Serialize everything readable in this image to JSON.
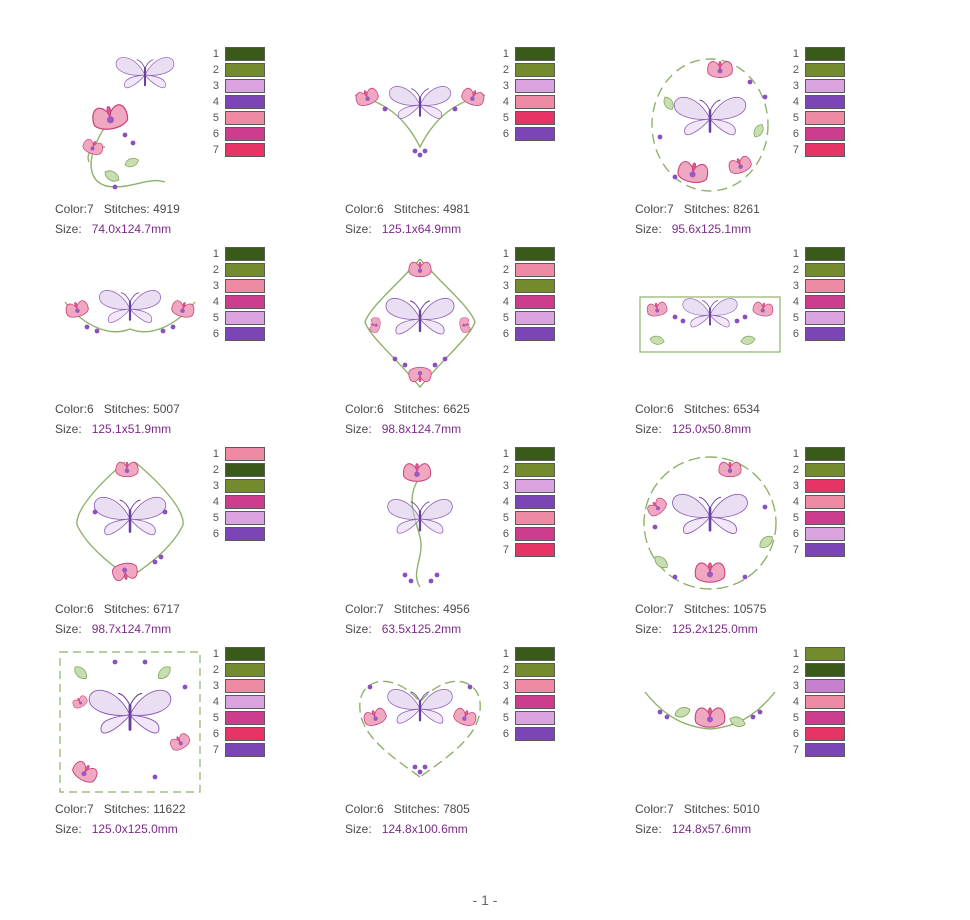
{
  "page": {
    "footer": "- 1 -"
  },
  "palette_colors": {
    "dark_green": "#3a5a1a",
    "olive_green": "#738a2f",
    "light_orchid": "#dba3df",
    "purple": "#7b45b5",
    "pink": "#ee8aa4",
    "magenta": "#cc3d8e",
    "crimson": "#e53465"
  },
  "designs": [
    {
      "color_label": "Color:",
      "color_count": "7",
      "stitches_label": "Stitches:",
      "stitches": "4919",
      "size_label": "Size:",
      "size": "74.0x124.7mm",
      "art": "butterfly-flower-corner",
      "palette": [
        {
          "n": "1",
          "c": "#3a5a1a"
        },
        {
          "n": "2",
          "c": "#738a2f"
        },
        {
          "n": "3",
          "c": "#dba3df"
        },
        {
          "n": "4",
          "c": "#7b45b5"
        },
        {
          "n": "5",
          "c": "#ee8aa4"
        },
        {
          "n": "6",
          "c": "#cc3d8e"
        },
        {
          "n": "7",
          "c": "#e53465"
        }
      ]
    },
    {
      "color_label": "Color:",
      "color_count": "6",
      "stitches_label": "Stitches:",
      "stitches": "4981",
      "size_label": "Size:",
      "size": "125.1x64.9mm",
      "art": "butterfly-triangle",
      "palette": [
        {
          "n": "1",
          "c": "#3a5a1a"
        },
        {
          "n": "2",
          "c": "#738a2f"
        },
        {
          "n": "3",
          "c": "#dba3df"
        },
        {
          "n": "4",
          "c": "#ee8aa4"
        },
        {
          "n": "5",
          "c": "#e53465"
        },
        {
          "n": "6",
          "c": "#7b45b5"
        }
      ]
    },
    {
      "color_label": "Color:",
      "color_count": "7",
      "stitches_label": "Stitches:",
      "stitches": "8261",
      "size_label": "Size:",
      "size": "95.6x125.1mm",
      "art": "butterfly-oval-wreath",
      "palette": [
        {
          "n": "1",
          "c": "#3a5a1a"
        },
        {
          "n": "2",
          "c": "#738a2f"
        },
        {
          "n": "3",
          "c": "#dba3df"
        },
        {
          "n": "4",
          "c": "#7b45b5"
        },
        {
          "n": "5",
          "c": "#ee8aa4"
        },
        {
          "n": "6",
          "c": "#cc3d8e"
        },
        {
          "n": "7",
          "c": "#e53465"
        }
      ]
    },
    {
      "color_label": "Color:",
      "color_count": "6",
      "stitches_label": "Stitches:",
      "stitches": "5007",
      "size_label": "Size:",
      "size": "125.1x51.9mm",
      "art": "butterfly-swag",
      "palette": [
        {
          "n": "1",
          "c": "#3a5a1a"
        },
        {
          "n": "2",
          "c": "#738a2f"
        },
        {
          "n": "3",
          "c": "#ee8aa4"
        },
        {
          "n": "4",
          "c": "#cc3d8e"
        },
        {
          "n": "5",
          "c": "#dba3df"
        },
        {
          "n": "6",
          "c": "#7b45b5"
        }
      ]
    },
    {
      "color_label": "Color:",
      "color_count": "6",
      "stitches_label": "Stitches:",
      "stitches": "6625",
      "size_label": "Size:",
      "size": "98.8x124.7mm",
      "art": "butterfly-diamond",
      "palette": [
        {
          "n": "1",
          "c": "#3a5a1a"
        },
        {
          "n": "2",
          "c": "#ee8aa4"
        },
        {
          "n": "3",
          "c": "#738a2f"
        },
        {
          "n": "4",
          "c": "#cc3d8e"
        },
        {
          "n": "5",
          "c": "#dba3df"
        },
        {
          "n": "6",
          "c": "#7b45b5"
        }
      ]
    },
    {
      "color_label": "Color:",
      "color_count": "6",
      "stitches_label": "Stitches:",
      "stitches": "6534",
      "size_label": "Size:",
      "size": "125.0x50.8mm",
      "art": "butterfly-border",
      "palette": [
        {
          "n": "1",
          "c": "#3a5a1a"
        },
        {
          "n": "2",
          "c": "#738a2f"
        },
        {
          "n": "3",
          "c": "#ee8aa4"
        },
        {
          "n": "4",
          "c": "#cc3d8e"
        },
        {
          "n": "5",
          "c": "#dba3df"
        },
        {
          "n": "6",
          "c": "#7b45b5"
        }
      ]
    },
    {
      "color_label": "Color:",
      "color_count": "6",
      "stitches_label": "Stitches:",
      "stitches": "6717",
      "size_label": "Size:",
      "size": "98.7x124.7mm",
      "art": "butterfly-diamond-2",
      "palette": [
        {
          "n": "1",
          "c": "#ee8aa4"
        },
        {
          "n": "2",
          "c": "#3a5a1a"
        },
        {
          "n": "3",
          "c": "#738a2f"
        },
        {
          "n": "4",
          "c": "#cc3d8e"
        },
        {
          "n": "5",
          "c": "#dba3df"
        },
        {
          "n": "6",
          "c": "#7b45b5"
        }
      ]
    },
    {
      "color_label": "Color:",
      "color_count": "7",
      "stitches_label": "Stitches:",
      "stitches": "4956",
      "size_label": "Size:",
      "size": "63.5x125.2mm",
      "art": "butterfly-vertical",
      "palette": [
        {
          "n": "1",
          "c": "#3a5a1a"
        },
        {
          "n": "2",
          "c": "#738a2f"
        },
        {
          "n": "3",
          "c": "#dba3df"
        },
        {
          "n": "4",
          "c": "#7b45b5"
        },
        {
          "n": "5",
          "c": "#ee8aa4"
        },
        {
          "n": "6",
          "c": "#cc3d8e"
        },
        {
          "n": "7",
          "c": "#e53465"
        }
      ]
    },
    {
      "color_label": "Color:",
      "color_count": "7",
      "stitches_label": "Stitches:",
      "stitches": "10575",
      "size_label": "Size:",
      "size": "125.2x125.0mm",
      "art": "butterfly-round-wreath",
      "palette": [
        {
          "n": "1",
          "c": "#3a5a1a"
        },
        {
          "n": "2",
          "c": "#738a2f"
        },
        {
          "n": "3",
          "c": "#e53465"
        },
        {
          "n": "4",
          "c": "#ee8aa4"
        },
        {
          "n": "5",
          "c": "#cc3d8e"
        },
        {
          "n": "6",
          "c": "#dba3df"
        },
        {
          "n": "7",
          "c": "#7b45b5"
        }
      ]
    },
    {
      "color_label": "Color:",
      "color_count": "7",
      "stitches_label": "Stitches:",
      "stitches": "11622",
      "size_label": "Size:",
      "size": "125.0x125.0mm",
      "art": "butterfly-square",
      "palette": [
        {
          "n": "1",
          "c": "#3a5a1a"
        },
        {
          "n": "2",
          "c": "#738a2f"
        },
        {
          "n": "3",
          "c": "#ee8aa4"
        },
        {
          "n": "4",
          "c": "#dba3df"
        },
        {
          "n": "5",
          "c": "#cc3d8e"
        },
        {
          "n": "6",
          "c": "#e53465"
        },
        {
          "n": "7",
          "c": "#7b45b5"
        }
      ]
    },
    {
      "color_label": "Color:",
      "color_count": "6",
      "stitches_label": "Stitches:",
      "stitches": "7805",
      "size_label": "Size:",
      "size": "124.8x100.6mm",
      "art": "butterfly-heart",
      "palette": [
        {
          "n": "1",
          "c": "#3a5a1a"
        },
        {
          "n": "2",
          "c": "#738a2f"
        },
        {
          "n": "3",
          "c": "#ee8aa4"
        },
        {
          "n": "4",
          "c": "#cc3d8e"
        },
        {
          "n": "5",
          "c": "#dba3df"
        },
        {
          "n": "6",
          "c": "#7b45b5"
        }
      ]
    },
    {
      "color_label": "Color:",
      "color_count": "7",
      "stitches_label": "Stitches:",
      "stitches": "5010",
      "size_label": "Size:",
      "size": "124.8x57.6mm",
      "art": "flower-swag",
      "palette": [
        {
          "n": "1",
          "c": "#738a2f"
        },
        {
          "n": "2",
          "c": "#3a5a1a"
        },
        {
          "n": "3",
          "c": "#c77fcf"
        },
        {
          "n": "4",
          "c": "#ee8aa4"
        },
        {
          "n": "5",
          "c": "#cc3d8e"
        },
        {
          "n": "6",
          "c": "#e53465"
        },
        {
          "n": "7",
          "c": "#7b45b5"
        }
      ]
    }
  ]
}
